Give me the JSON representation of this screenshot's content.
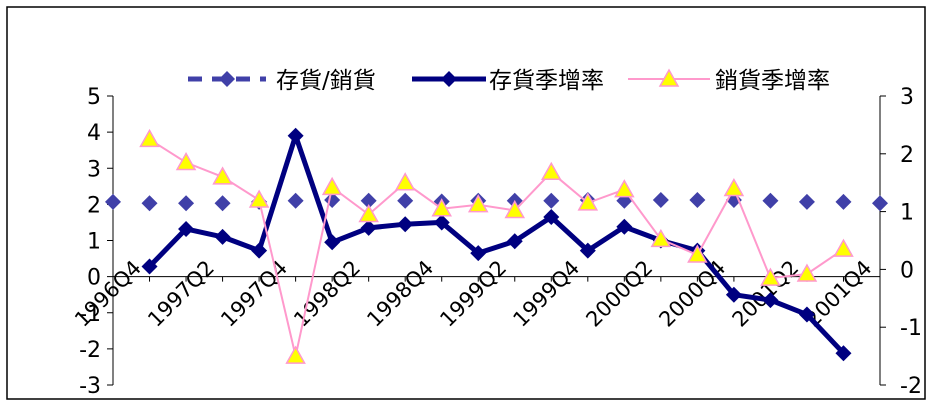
{
  "chart_data": {
    "type": "line",
    "categories": [
      "1996Q4",
      "1997Q1",
      "1997Q2",
      "1997Q3",
      "1997Q4",
      "1998Q1",
      "1998Q2",
      "1998Q3",
      "1998Q4",
      "1999Q1",
      "1999Q2",
      "1999Q3",
      "1999Q4",
      "2000Q1",
      "2000Q2",
      "2000Q3",
      "2000Q4",
      "2001Q1",
      "2001Q2",
      "2001Q3",
      "2001Q4",
      "2002Q1"
    ],
    "x_tick_labels": [
      "1996Q4",
      "1997Q2",
      "1997Q4",
      "1998Q2",
      "1998Q4",
      "1999Q2",
      "1999Q4",
      "2000Q2",
      "2000Q4",
      "2001Q2",
      "2001Q4"
    ],
    "y_left": {
      "lim": [
        -3,
        5
      ],
      "ticks": [
        -3,
        -2,
        -1,
        0,
        1,
        2,
        3,
        4,
        5
      ]
    },
    "y_right": {
      "lim": [
        -2,
        3
      ],
      "ticks": [
        -2,
        -1,
        0,
        1,
        2,
        3
      ]
    },
    "legend_position": "top",
    "series": [
      {
        "name": "存貨/銷貨",
        "axis": "left",
        "color": "#4040a8",
        "style": "dashed-diamond",
        "values": [
          2.07,
          2.03,
          2.03,
          2.03,
          2.07,
          2.1,
          2.12,
          2.1,
          2.1,
          2.08,
          2.1,
          2.1,
          2.1,
          2.12,
          2.1,
          2.12,
          2.12,
          2.12,
          2.1,
          2.07,
          2.07,
          2.03
        ]
      },
      {
        "name": "存貨季增率",
        "axis": "left",
        "color": "#000080",
        "style": "solid-diamond",
        "values": [
          null,
          0.28,
          1.32,
          1.1,
          0.72,
          3.9,
          0.95,
          1.35,
          1.45,
          1.5,
          0.65,
          0.98,
          1.65,
          0.72,
          1.38,
          1.0,
          0.72,
          -0.5,
          -0.65,
          -1.05,
          -2.12,
          null
        ]
      },
      {
        "name": "銷貨季增率",
        "axis": "right",
        "color": "#ff99cc",
        "marker_color": "#ffff00",
        "style": "solid-triangle",
        "values": [
          null,
          2.25,
          1.85,
          1.6,
          1.2,
          -1.5,
          1.42,
          0.95,
          1.5,
          1.05,
          1.12,
          1.02,
          1.68,
          1.15,
          1.38,
          0.52,
          0.25,
          1.4,
          -0.15,
          -0.08,
          0.35,
          null
        ]
      }
    ]
  }
}
